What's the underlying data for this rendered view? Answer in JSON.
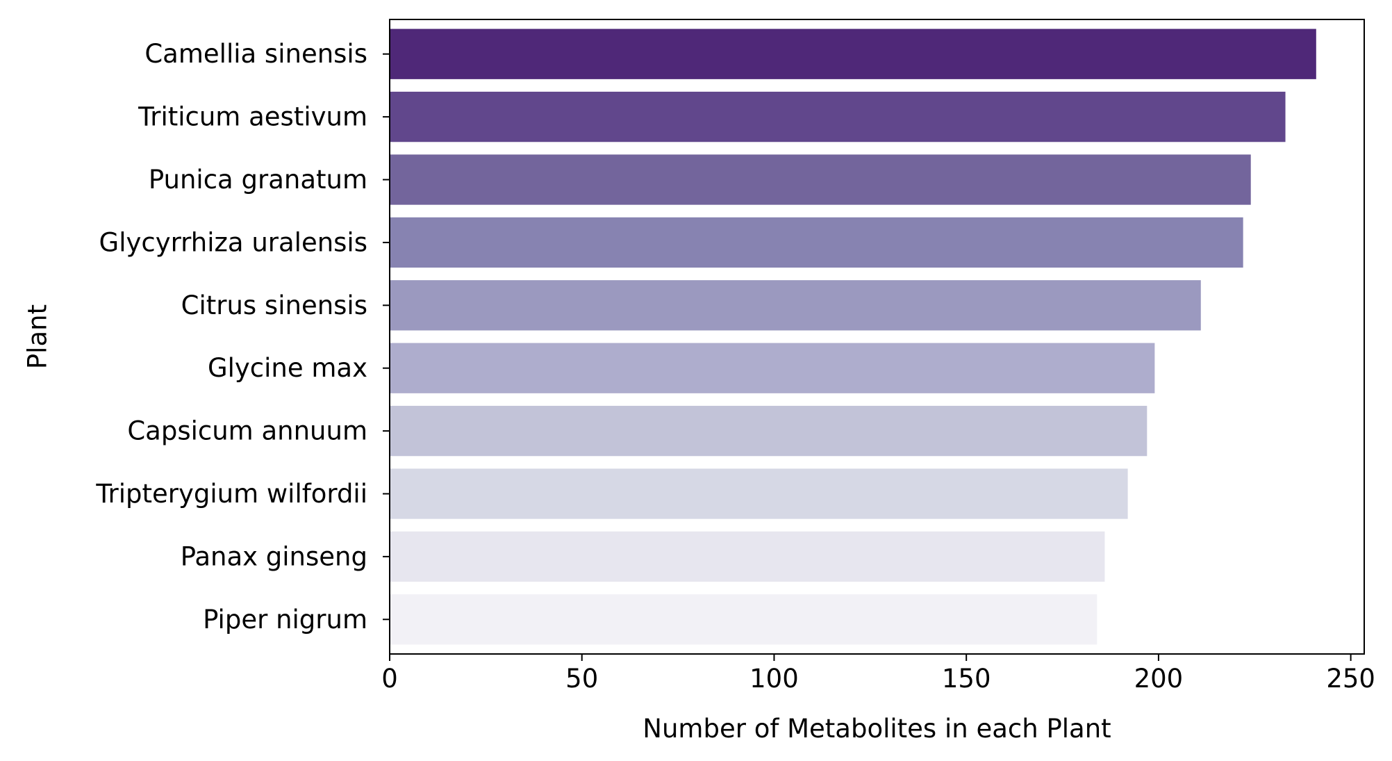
{
  "chart_data": {
    "type": "bar",
    "orientation": "horizontal",
    "categories": [
      "Camellia sinensis",
      "Triticum aestivum",
      "Punica granatum",
      "Glycyrrhiza uralensis",
      "Citrus sinensis",
      "Glycine max",
      "Capsicum annuum",
      "Tripterygium wilfordii",
      "Panax ginseng",
      "Piper nigrum"
    ],
    "values": [
      241,
      233,
      224,
      222,
      211,
      199,
      197,
      192,
      186,
      184
    ],
    "colors": [
      "#4f2878",
      "#61478c",
      "#73659c",
      "#8783b1",
      "#9b99bf",
      "#aeadcd",
      "#c2c3d8",
      "#d6d8e5",
      "#e7e6ef",
      "#f2f1f6"
    ],
    "xlabel": "Number of Metabolites in each Plant",
    "ylabel": "Plant",
    "xlim": [
      0,
      253.5
    ],
    "xticks": [
      0,
      50,
      100,
      150,
      200,
      250
    ],
    "grid": false,
    "legend": "none"
  }
}
